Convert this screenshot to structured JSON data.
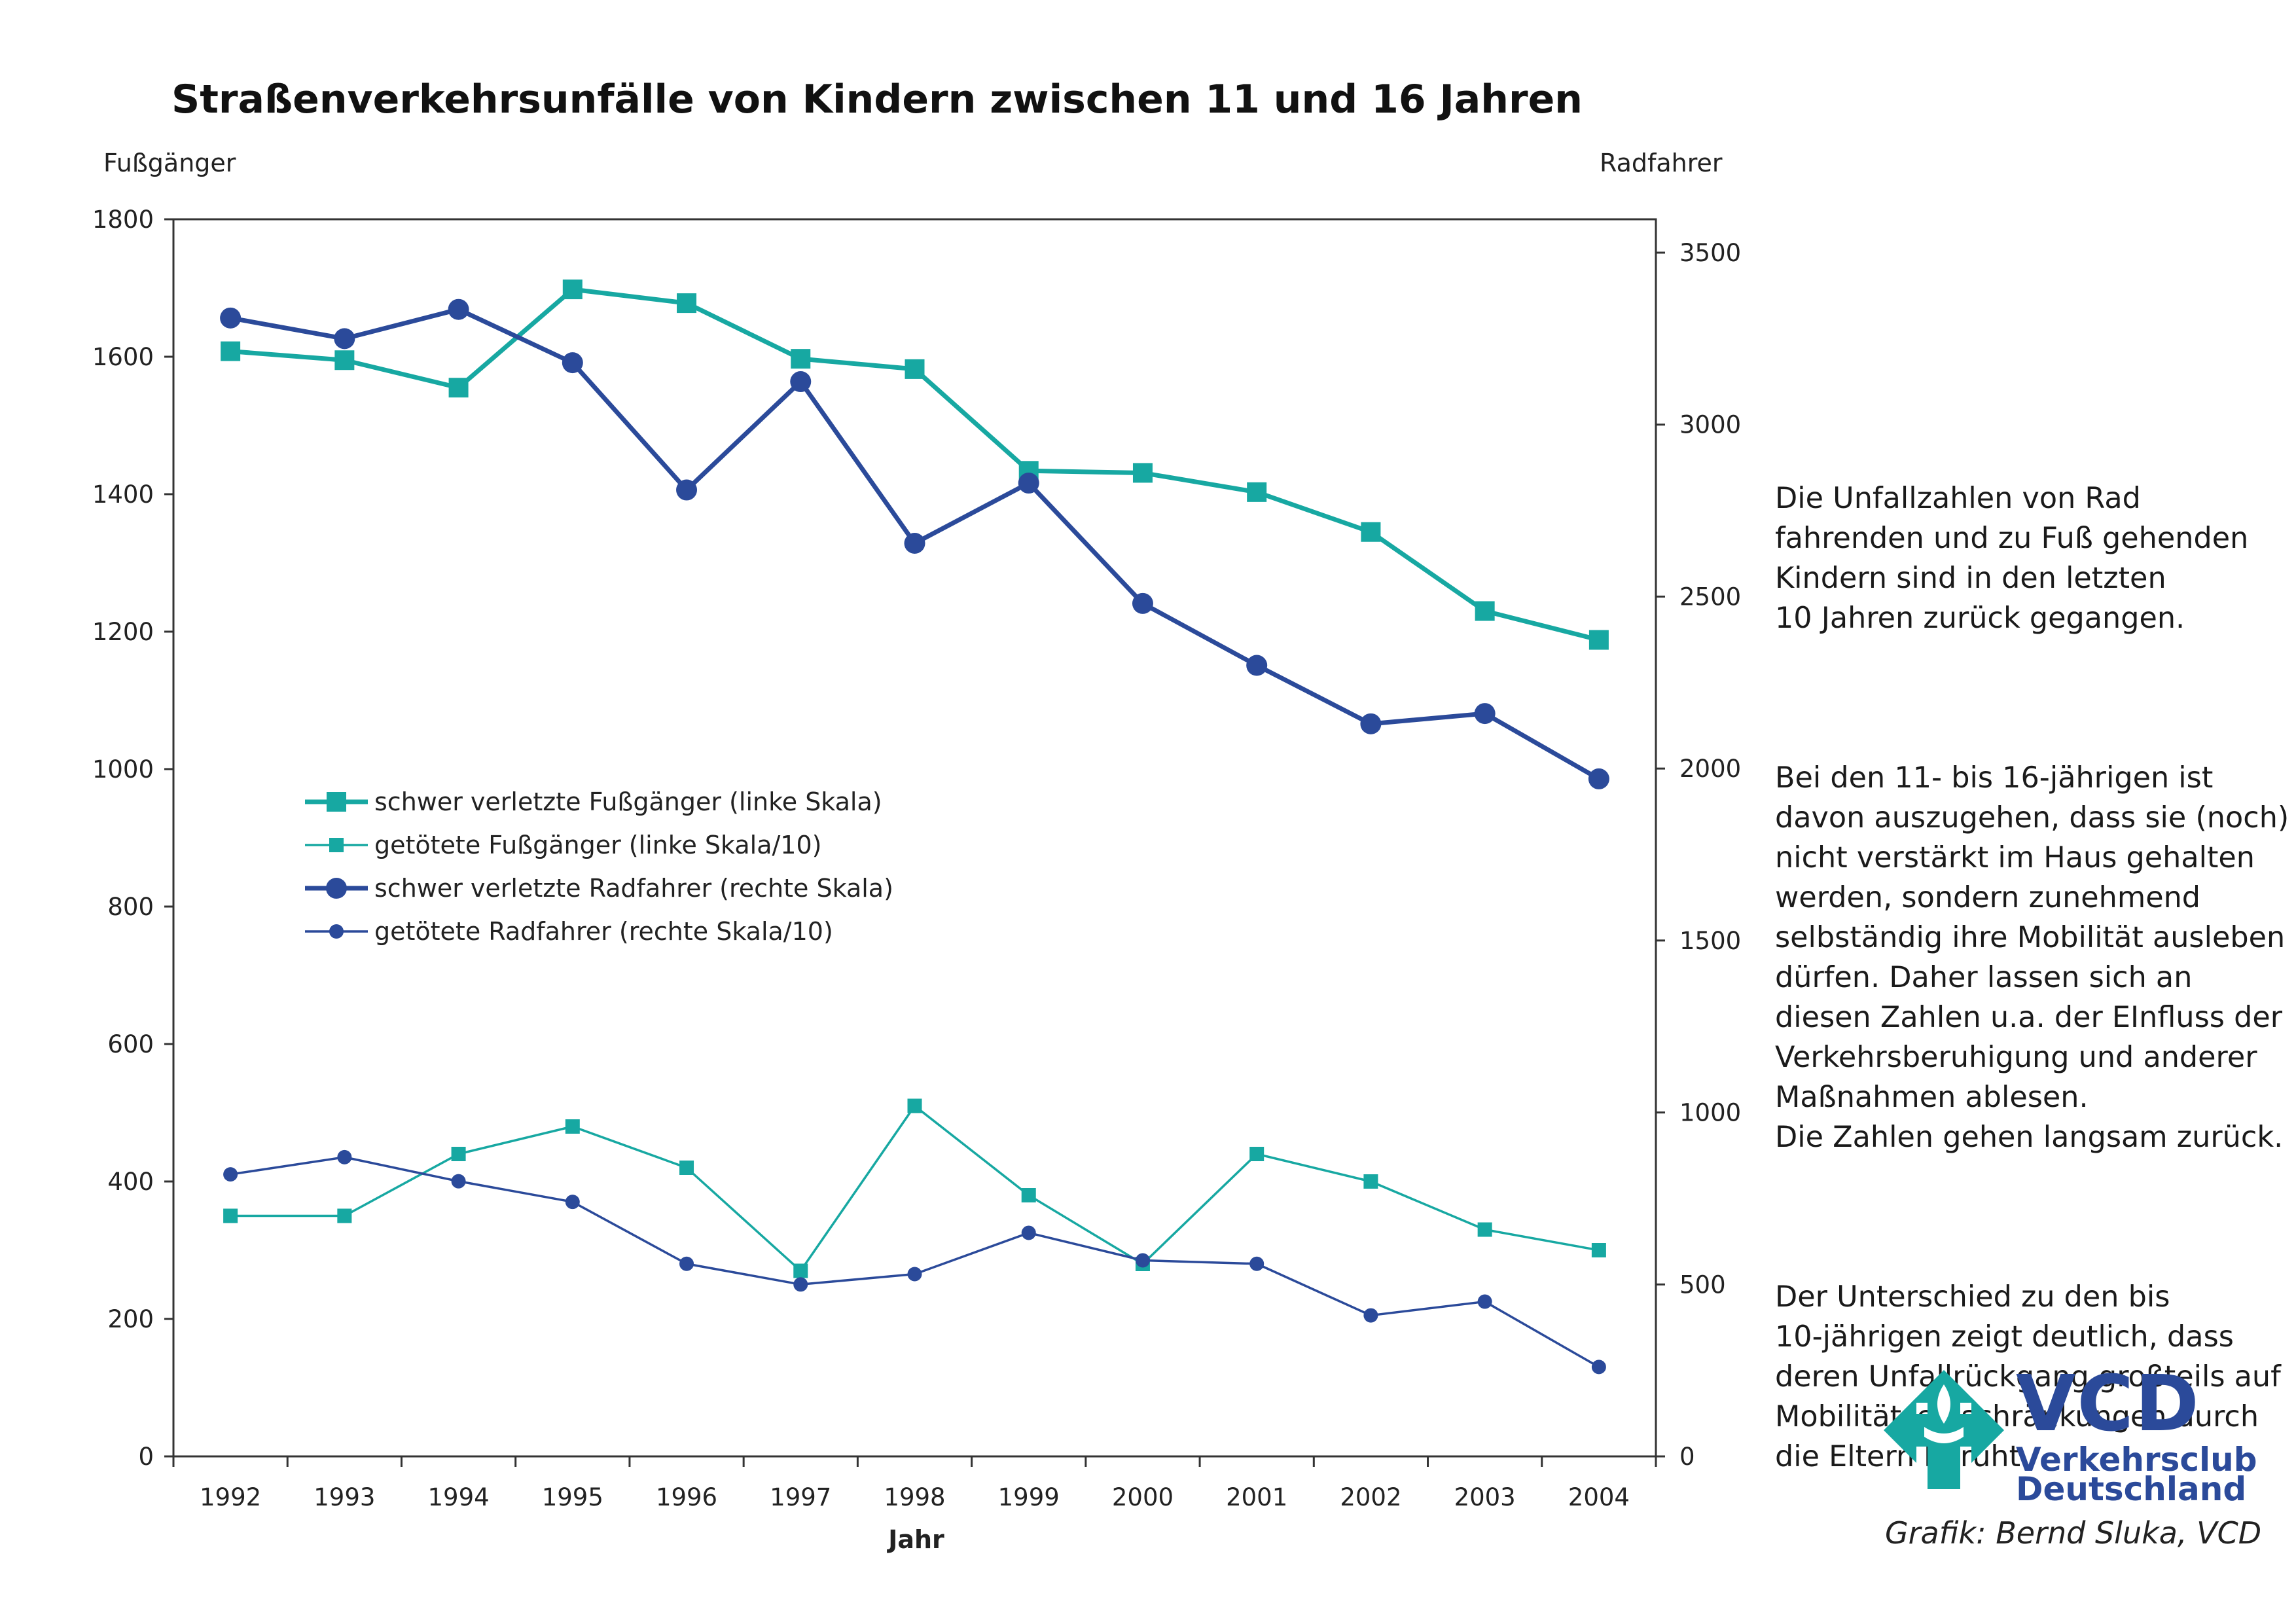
{
  "title": "Straßenverkehrsunfälle von Kindern zwischen 11 und 16 Jahren",
  "left_axis_title": "Fußgänger",
  "right_axis_title": "Radfahrer",
  "x_axis_title": "Jahr",
  "paragraphs": [
    "Die Unfallzahlen von Rad\nfahrenden und zu Fuß gehenden\nKindern sind in den letzten\n10 Jahren zurück gegangen.",
    "Bei den 11- bis 16-jährigen ist\ndavon auszugehen, dass sie (noch)\nnicht verstärkt im Haus gehalten\nwerden, sondern zunehmend\nselbständig ihre Mobilität ausleben\ndürfen. Daher lassen sich an\ndiesen Zahlen u.a. der EInfluss der\nVerkehrsberuhigung und anderer\nMaßnahmen ablesen.\nDie Zahlen gehen langsam zurück.",
    "Der Unterschied zu den bis\n10-jährigen zeigt deutlich, dass\nderen Unfallrückgang großteils auf\nMobilitätseinschränkungen durch\ndie Eltern beruht."
  ],
  "logo": {
    "name": "VCD",
    "line1": "Verkehrsclub",
    "line2": "Deutschland"
  },
  "credit": "Grafik: Bernd Sluka, VCD",
  "colors": {
    "teal": "#17a8a2",
    "blue": "#2b4a9a",
    "axis": "#333333"
  },
  "chart_data": {
    "type": "line",
    "categories": [
      "1992",
      "1993",
      "1994",
      "1995",
      "1996",
      "1997",
      "1998",
      "1999",
      "2000",
      "2001",
      "2002",
      "2003",
      "2004"
    ],
    "left_axis": {
      "min": 0,
      "max": 1800,
      "ticks": [
        0,
        200,
        400,
        600,
        800,
        1000,
        1200,
        1400,
        1600,
        1800
      ]
    },
    "right_axis": {
      "min": 0,
      "max": 3500,
      "ticks": [
        0,
        500,
        1000,
        1500,
        2000,
        2500,
        3000,
        3500
      ]
    },
    "series": [
      {
        "name": "schwer verletzte Fußgänger (linke Skala)",
        "axis": "left",
        "marker": "square",
        "weight": "thick",
        "color": "#17a8a2",
        "values": [
          1608,
          1595,
          1555,
          1698,
          1678,
          1597,
          1582,
          1434,
          1431,
          1403,
          1345,
          1230,
          1188
        ]
      },
      {
        "name": "getötete Fußgänger (linke Skala/10)",
        "axis": "left",
        "marker": "square",
        "weight": "thin",
        "color": "#17a8a2",
        "values": [
          350,
          350,
          440,
          480,
          420,
          270,
          510,
          380,
          280,
          440,
          400,
          330,
          300
        ]
      },
      {
        "name": "schwer verletzte Radfahrer (rechte Skala)",
        "axis": "right",
        "marker": "circle",
        "weight": "thick",
        "color": "#2b4a9a",
        "values": [
          3310,
          3250,
          3335,
          3180,
          2810,
          3125,
          2655,
          2830,
          2480,
          2300,
          2130,
          2160,
          1970
        ]
      },
      {
        "name": "getötete Radfahrer (rechte Skala/10)",
        "axis": "right",
        "marker": "circle",
        "weight": "thin",
        "color": "#2b4a9a",
        "values": [
          820,
          870,
          800,
          740,
          560,
          500,
          530,
          650,
          570,
          560,
          410,
          450,
          260
        ]
      }
    ],
    "legend_position": "center-left",
    "grid": false
  }
}
